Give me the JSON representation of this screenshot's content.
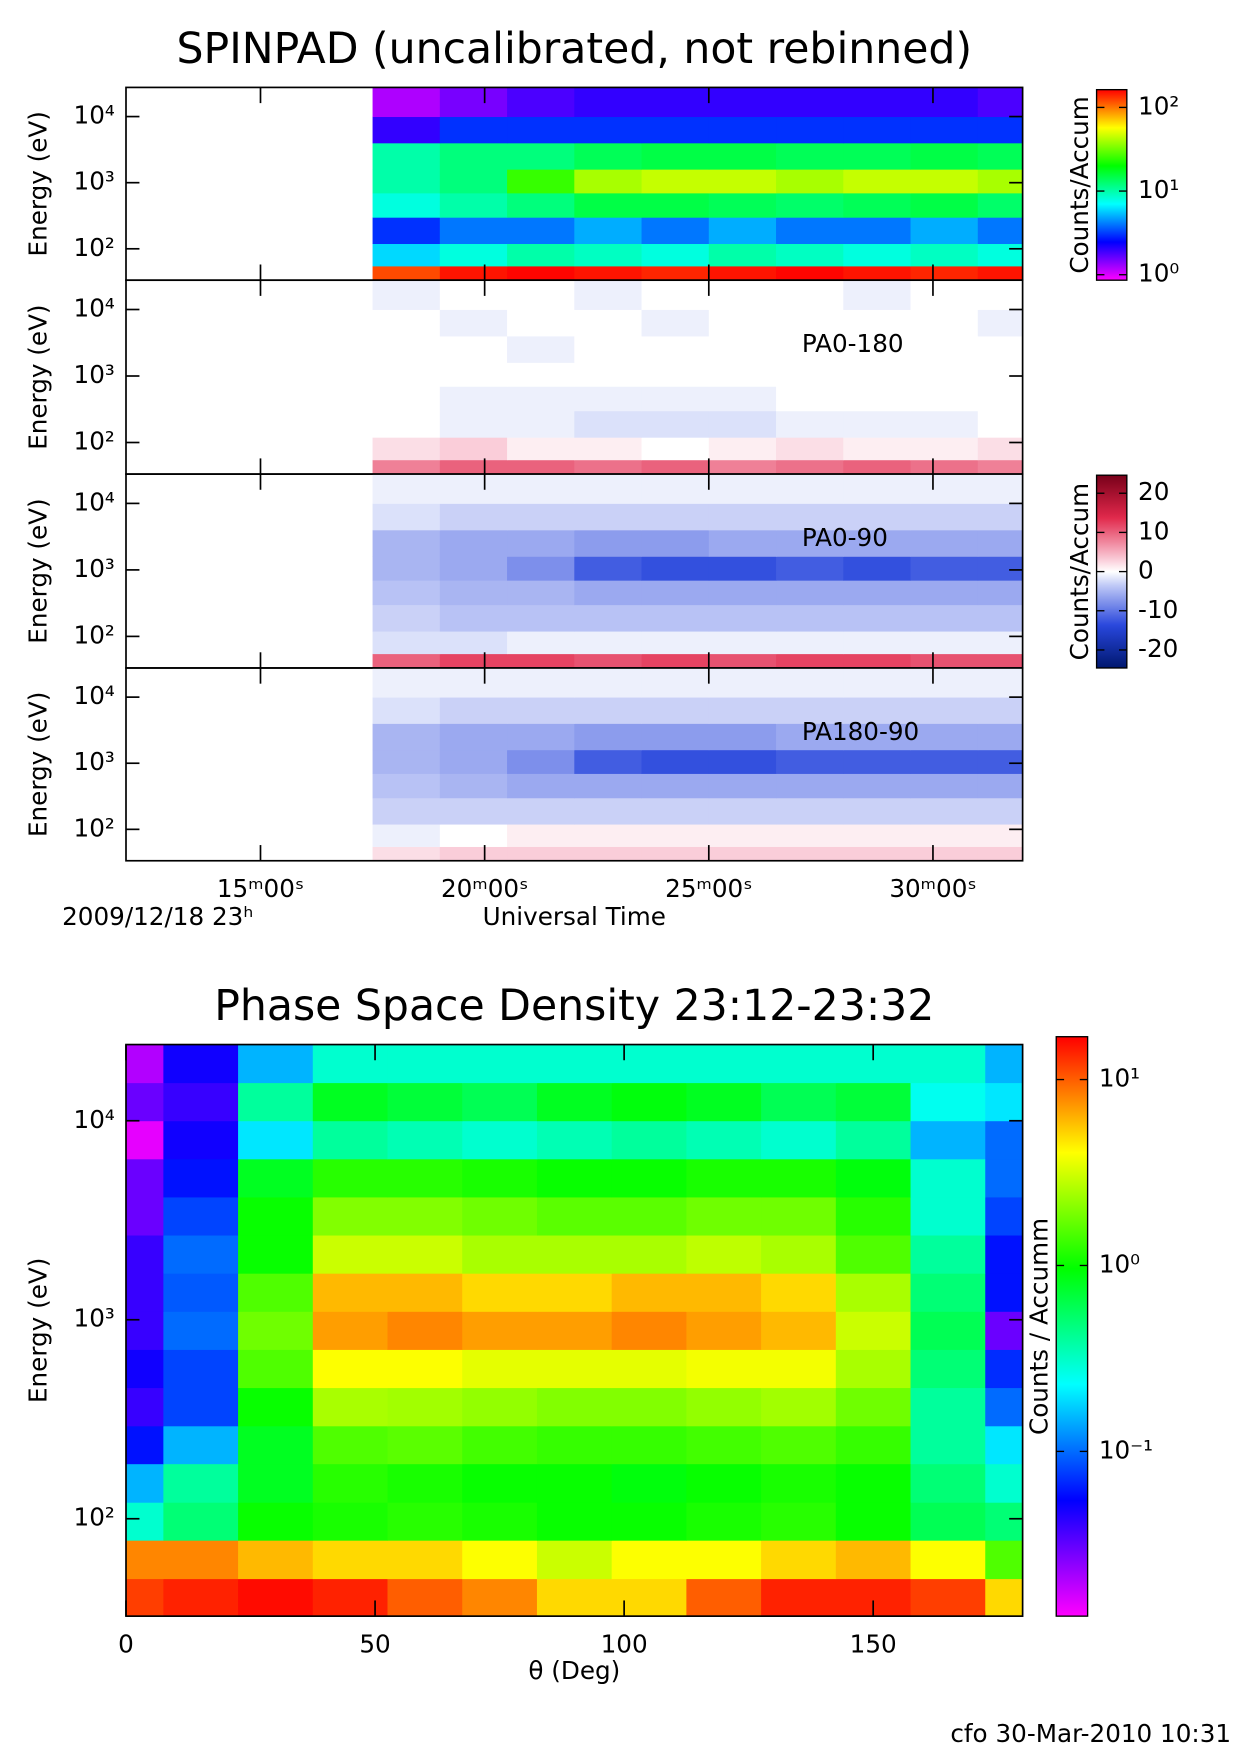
{
  "chart_data": [
    {
      "type": "heatmap",
      "title": "SPINPAD (uncalibrated, not rebinned)",
      "ylabel": "Energy (eV)",
      "log_y": true,
      "xlim": [
        12,
        32
      ],
      "xticks": [
        15,
        20,
        25,
        30
      ],
      "ylim": [
        33.5,
        27600
      ],
      "yticks": [
        {
          "value": 100,
          "label": "10²"
        },
        {
          "value": 1000,
          "label": "10³"
        },
        {
          "value": 10000,
          "label": "10⁴"
        }
      ],
      "x_bins": [
        17.5,
        19,
        20.5,
        22,
        23.5,
        25,
        26.5,
        28,
        29.5,
        31,
        32
      ],
      "y_bins": [
        33.5,
        55,
        120,
        300,
        700,
        1600,
        4000,
        10000,
        27600
      ],
      "values": [
        [
          120,
          150,
          160,
          150,
          140,
          150,
          160,
          150,
          140,
          150
        ],
        [
          6,
          8,
          10,
          9,
          8,
          10,
          9,
          8,
          9,
          8
        ],
        [
          3,
          4,
          4,
          5,
          4,
          5,
          4,
          4,
          5,
          4
        ],
        [
          8,
          10,
          12,
          15,
          15,
          14,
          13,
          14,
          15,
          13
        ],
        [
          10,
          12,
          25,
          40,
          45,
          45,
          40,
          45,
          45,
          40
        ],
        [
          10,
          12,
          12,
          14,
          15,
          15,
          14,
          14,
          15,
          14
        ],
        [
          2,
          3,
          3,
          3,
          3,
          3,
          3,
          3,
          3,
          3
        ],
        [
          1.2,
          1.5,
          1.8,
          2,
          2,
          2,
          2,
          2,
          2,
          1.8
        ]
      ],
      "colormap": "rainbow",
      "log_color": true,
      "clim": [
        0.86,
        163
      ],
      "colorbar": {
        "label": "Counts/Accum",
        "ticks": [
          {
            "value": 1,
            "label": "10⁰"
          },
          {
            "value": 10,
            "label": "10¹"
          },
          {
            "value": 100,
            "label": "10²"
          }
        ]
      }
    },
    {
      "type": "heatmap",
      "annotation": "PA0-180",
      "ylabel": "Energy (eV)",
      "log_y": true,
      "xlim": [
        12,
        32
      ],
      "xticks": [
        15,
        20,
        25,
        30
      ],
      "ylim": [
        33.5,
        27600
      ],
      "yticks": [
        {
          "value": 100,
          "label": "10²"
        },
        {
          "value": 1000,
          "label": "10³"
        },
        {
          "value": 10000,
          "label": "10⁴"
        }
      ],
      "x_bins": [
        17.5,
        19,
        20.5,
        22,
        23.5,
        25,
        26.5,
        28,
        29.5,
        31,
        32
      ],
      "y_bins": [
        33.5,
        55,
        120,
        300,
        700,
        1600,
        4000,
        10000,
        27600
      ],
      "values": [
        [
          8,
          10,
          10,
          9,
          10,
          8,
          9,
          10,
          9,
          8
        ],
        [
          2,
          3,
          1,
          1,
          0,
          1,
          2,
          1,
          1,
          2
        ],
        [
          0,
          -1,
          -1,
          -2,
          -2,
          -2,
          -1,
          -1,
          -1,
          0
        ],
        [
          0,
          -1,
          -1,
          -1,
          -1,
          -1,
          0,
          0,
          0,
          0
        ],
        [
          0,
          0,
          0,
          0,
          0,
          0,
          0,
          0,
          0,
          0
        ],
        [
          0,
          0,
          -1,
          0,
          0,
          0,
          0,
          0,
          0,
          0
        ],
        [
          0,
          -1,
          0,
          0,
          -1,
          0,
          0,
          0,
          0,
          -1
        ],
        [
          -1,
          0,
          0,
          -1,
          0,
          0,
          0,
          -1,
          0,
          0
        ]
      ],
      "colormap": "diverging",
      "log_color": false,
      "clim": [
        -24.6,
        24.6
      ]
    },
    {
      "type": "heatmap",
      "annotation": "PA0-90",
      "ylabel": "Energy (eV)",
      "log_y": true,
      "xlim": [
        12,
        32
      ],
      "xticks": [
        15,
        20,
        25,
        30
      ],
      "ylim": [
        33.5,
        27600
      ],
      "yticks": [
        {
          "value": 100,
          "label": "10²"
        },
        {
          "value": 1000,
          "label": "10³"
        },
        {
          "value": 10000,
          "label": "10⁴"
        }
      ],
      "x_bins": [
        17.5,
        19,
        20.5,
        22,
        23.5,
        25,
        26.5,
        28,
        29.5,
        31,
        32
      ],
      "y_bins": [
        33.5,
        55,
        120,
        300,
        700,
        1600,
        4000,
        10000,
        27600
      ],
      "values": [
        [
          10,
          12,
          12,
          11,
          12,
          11,
          12,
          12,
          11,
          11
        ],
        [
          -2,
          -2,
          -1,
          -1,
          -1,
          -1,
          -1,
          -1,
          -1,
          -1
        ],
        [
          -3,
          -4,
          -4,
          -4,
          -4,
          -4,
          -4,
          -4,
          -4,
          -4
        ],
        [
          -4,
          -5,
          -5,
          -6,
          -6,
          -6,
          -6,
          -6,
          -6,
          -6
        ],
        [
          -5,
          -6,
          -8,
          -12,
          -13,
          -13,
          -12,
          -13,
          -12,
          -12
        ],
        [
          -5,
          -6,
          -6,
          -7,
          -7,
          -6,
          -6,
          -6,
          -6,
          -6
        ],
        [
          -2,
          -3,
          -3,
          -3,
          -3,
          -3,
          -3,
          -3,
          -3,
          -3
        ],
        [
          -1,
          -1,
          -1,
          -1,
          -1,
          -1,
          -1,
          -1,
          -1,
          -1
        ]
      ],
      "colormap": "diverging",
      "log_color": false,
      "clim": [
        -24.6,
        24.6
      ],
      "colorbar": {
        "label": "Counts/Accum",
        "ticks": [
          -20,
          -10,
          0,
          10,
          20
        ]
      }
    },
    {
      "type": "heatmap",
      "annotation": "PA180-90",
      "ylabel": "Energy (eV)",
      "log_y": true,
      "xlim": [
        12,
        32
      ],
      "xticks": [
        {
          "value": 15,
          "label": "15ᵐ00ˢ"
        },
        {
          "value": 20,
          "label": "20ᵐ00ˢ"
        },
        {
          "value": 25,
          "label": "25ᵐ00ˢ"
        },
        {
          "value": 30,
          "label": "30ᵐ00ˢ"
        }
      ],
      "xlabel": "Universal Time",
      "date_label": "2009/12/18 23ʰ",
      "ylim": [
        33.5,
        27600
      ],
      "yticks": [
        {
          "value": 100,
          "label": "10²"
        },
        {
          "value": 1000,
          "label": "10³"
        },
        {
          "value": 10000,
          "label": "10⁴"
        }
      ],
      "x_bins": [
        17.5,
        19,
        20.5,
        22,
        23.5,
        25,
        26.5,
        28,
        29.5,
        31,
        32
      ],
      "y_bins": [
        33.5,
        55,
        120,
        300,
        700,
        1600,
        4000,
        10000,
        27600
      ],
      "values": [
        [
          2,
          3,
          3,
          3,
          3,
          3,
          3,
          3,
          3,
          3
        ],
        [
          -1,
          0,
          1,
          1,
          1,
          1,
          1,
          1,
          1,
          1
        ],
        [
          -3,
          -3,
          -3,
          -3,
          -3,
          -3,
          -3,
          -3,
          -3,
          -3
        ],
        [
          -4,
          -5,
          -6,
          -6,
          -6,
          -6,
          -6,
          -6,
          -6,
          -6
        ],
        [
          -5,
          -6,
          -8,
          -12,
          -13,
          -13,
          -12,
          -12,
          -12,
          -12
        ],
        [
          -5,
          -6,
          -6,
          -7,
          -7,
          -7,
          -6,
          -6,
          -6,
          -6
        ],
        [
          -2,
          -3,
          -3,
          -3,
          -3,
          -3,
          -3,
          -3,
          -3,
          -3
        ],
        [
          -1,
          -1,
          -1,
          -1,
          -1,
          -1,
          -1,
          -1,
          -1,
          -1
        ]
      ],
      "colormap": "diverging",
      "log_color": false,
      "clim": [
        -24.6,
        24.6
      ]
    },
    {
      "type": "heatmap",
      "title": "Phase Space Density 23:12-23:32",
      "ylabel": "Energy (eV)",
      "xlabel": "θ (Deg)",
      "log_y": true,
      "xlim": [
        0,
        180
      ],
      "xticks": [
        0,
        50,
        100,
        150
      ],
      "ylim": [
        32.4,
        24150
      ],
      "yticks": [
        {
          "value": 100,
          "label": "10²"
        },
        {
          "value": 1000,
          "label": "10³"
        },
        {
          "value": 10000,
          "label": "10⁴"
        }
      ],
      "x_bins": [
        0,
        7.5,
        22.5,
        37.5,
        52.5,
        67.5,
        82.5,
        97.5,
        112.5,
        127.5,
        142.5,
        157.5,
        172.5,
        180
      ],
      "y_bins": [
        32.4,
        50,
        78,
        121,
        189,
        293,
        456,
        709,
        1102,
        1713,
        2664,
        4140,
        6435,
        10000,
        15540,
        24150
      ],
      "values": [
        [
          12,
          14,
          16,
          14,
          10,
          8,
          5,
          5,
          10,
          14,
          14,
          12,
          5
        ],
        [
          8,
          8,
          6,
          5,
          5,
          4,
          3,
          4,
          4,
          5,
          6,
          4,
          1.5
        ],
        [
          0.3,
          0.5,
          1,
          1.1,
          1.2,
          1.1,
          1,
          1,
          1.1,
          1.2,
          1,
          0.6,
          0.5
        ],
        [
          0.15,
          0.4,
          0.8,
          1.2,
          1.1,
          1,
          1,
          0.9,
          1,
          1.1,
          1,
          0.5,
          0.3
        ],
        [
          0.06,
          0.15,
          0.8,
          1.5,
          1.6,
          1.4,
          1.3,
          1.3,
          1.4,
          1.5,
          1.3,
          0.4,
          0.2
        ],
        [
          0.04,
          0.08,
          1,
          2.5,
          2.4,
          2.2,
          2,
          2,
          2.2,
          2.4,
          1.8,
          0.4,
          0.1
        ],
        [
          0.05,
          0.08,
          1.5,
          4,
          4,
          3.5,
          3.5,
          3.5,
          3.8,
          3.8,
          2.5,
          0.5,
          0.07
        ],
        [
          0.04,
          0.1,
          1.8,
          7,
          8,
          7,
          7,
          8,
          7,
          6,
          3,
          0.6,
          0.03
        ],
        [
          0.04,
          0.09,
          1.5,
          6,
          6,
          5,
          5,
          6,
          6,
          5,
          2.5,
          0.5,
          0.06
        ],
        [
          0.04,
          0.1,
          1,
          3,
          3,
          2.5,
          2.5,
          2.5,
          2.8,
          2.5,
          1.5,
          0.4,
          0.06
        ],
        [
          0.03,
          0.08,
          1,
          2,
          2,
          1.8,
          1.6,
          1.6,
          1.8,
          1.8,
          1.2,
          0.3,
          0.08
        ],
        [
          0.03,
          0.06,
          0.8,
          1.2,
          1.2,
          1.1,
          1,
          1,
          1.1,
          1.1,
          0.9,
          0.3,
          0.1
        ],
        [
          0.015,
          0.05,
          0.2,
          0.4,
          0.35,
          0.3,
          0.35,
          0.4,
          0.35,
          0.3,
          0.4,
          0.15,
          0.1
        ],
        [
          0.03,
          0.04,
          0.4,
          0.8,
          0.7,
          0.6,
          0.8,
          0.9,
          0.8,
          0.6,
          0.7,
          0.25,
          0.2
        ],
        [
          0.02,
          0.05,
          0.15,
          0.3,
          0.3,
          0.3,
          0.3,
          0.3,
          0.3,
          0.3,
          0.3,
          0.3,
          0.15
        ]
      ],
      "colormap": "rainbow",
      "log_color": true,
      "clim": [
        0.013,
        17
      ],
      "colorbar": {
        "label": "Counts / Accumm",
        "ticks": [
          {
            "value": 0.1,
            "label": "10⁻¹"
          },
          {
            "value": 1,
            "label": "10⁰"
          },
          {
            "value": 10,
            "label": "10¹"
          }
        ]
      }
    }
  ],
  "footer": "cfo 30-Mar-2010 10:31"
}
